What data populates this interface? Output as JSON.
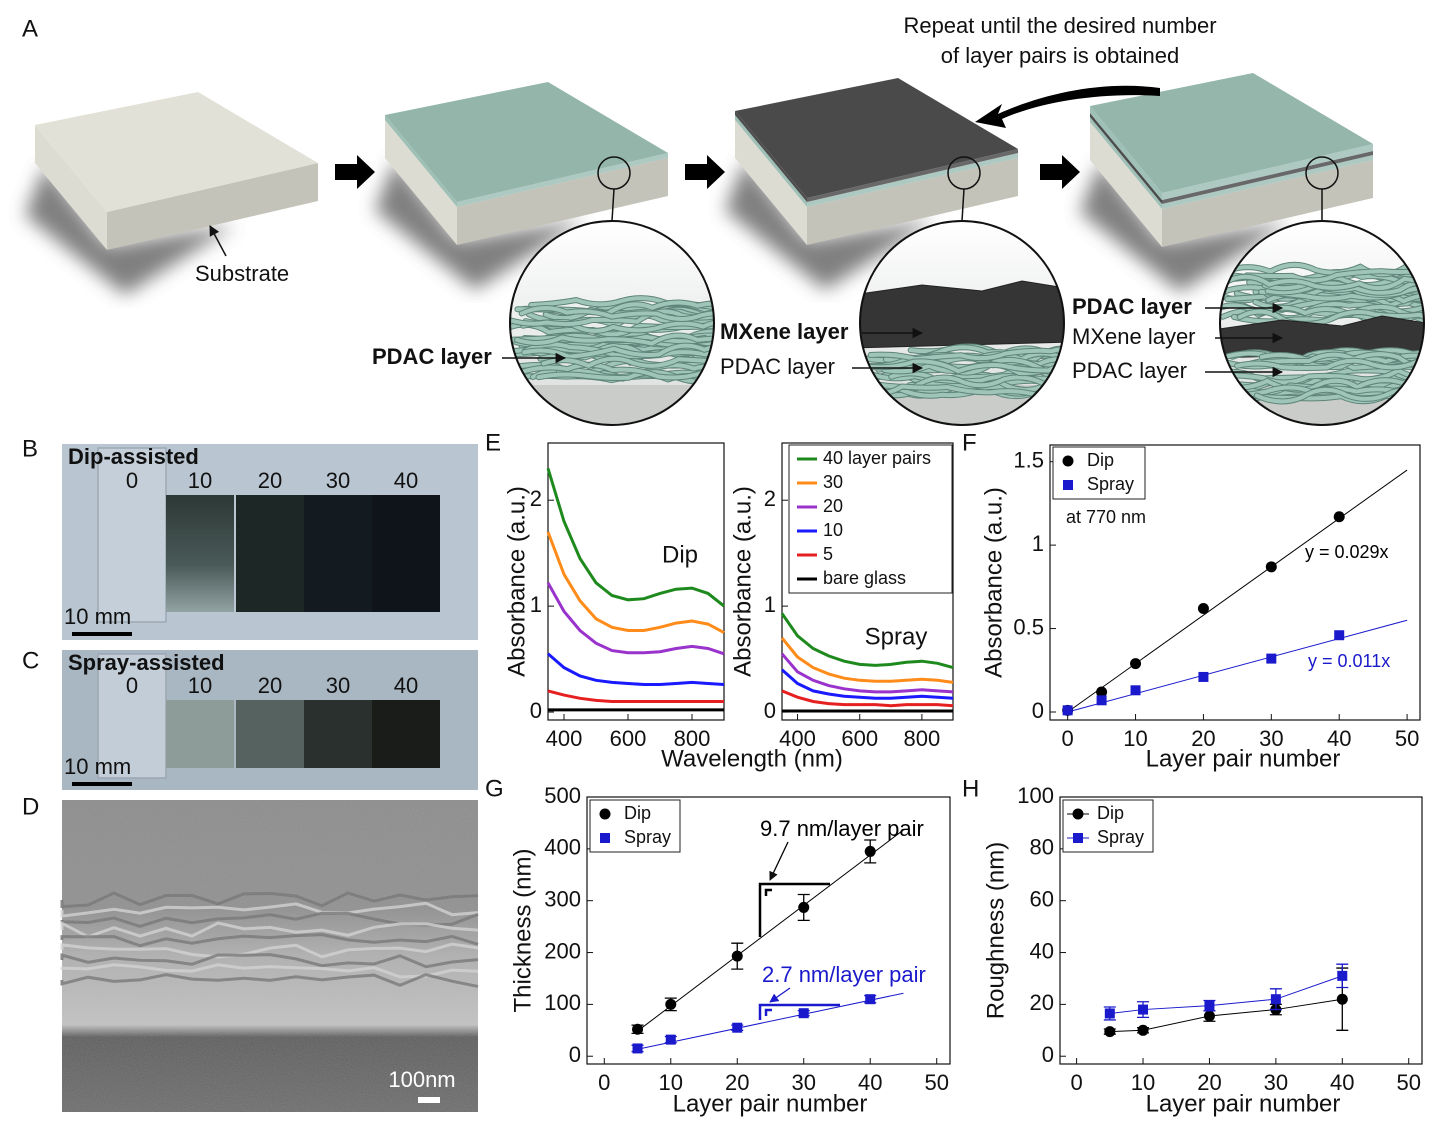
{
  "panel_labels": [
    "A",
    "B",
    "C",
    "D",
    "E",
    "F",
    "G",
    "H"
  ],
  "panel_a": {
    "repeat_note": [
      "Repeat until the desired number",
      "of layer pairs is obtained"
    ],
    "substrate": "Substrate",
    "zoom_1": [
      "PDAC layer"
    ],
    "zoom_2": [
      "MXene layer",
      "PDAC layer"
    ],
    "zoom_3": [
      "PDAC layer",
      "MXene layer",
      "PDAC layer"
    ]
  },
  "panel_b": {
    "title": "Dip-assisted",
    "samples": [
      "0",
      "10",
      "20",
      "30",
      "40"
    ],
    "scale_bar": "10 mm"
  },
  "panel_c": {
    "title": "Spray-assisted",
    "samples": [
      "0",
      "10",
      "20",
      "30",
      "40"
    ],
    "scale_bar": "10 mm"
  },
  "panel_d": {
    "scale_bar": "100nm"
  },
  "chart_data": [
    {
      "type": "line",
      "annotation": "Dip",
      "ylabel": "Absorbance (a.u.)",
      "xlabel": "Wavelength (nm)",
      "xlim": [
        350,
        900
      ],
      "xticks": [
        400,
        600,
        800
      ],
      "ylim": [
        -0.075,
        2.54
      ],
      "yticks": [
        0,
        1,
        2
      ],
      "x": [
        350,
        400,
        450,
        500,
        550,
        600,
        650,
        700,
        750,
        800,
        850,
        900
      ],
      "series": [
        {
          "color": "#1e8a1e",
          "values": [
            2.3,
            1.8,
            1.45,
            1.22,
            1.1,
            1.06,
            1.07,
            1.12,
            1.16,
            1.17,
            1.12,
            1.0
          ]
        },
        {
          "color": "#ff8c1a",
          "values": [
            1.7,
            1.3,
            1.05,
            0.88,
            0.8,
            0.77,
            0.77,
            0.8,
            0.84,
            0.86,
            0.83,
            0.75
          ]
        },
        {
          "color": "#9933cc",
          "values": [
            1.22,
            0.95,
            0.77,
            0.65,
            0.58,
            0.56,
            0.56,
            0.57,
            0.6,
            0.62,
            0.6,
            0.55
          ]
        },
        {
          "color": "#1a1aff",
          "values": [
            0.55,
            0.42,
            0.34,
            0.3,
            0.28,
            0.27,
            0.26,
            0.26,
            0.27,
            0.28,
            0.27,
            0.26
          ]
        },
        {
          "color": "#e62020",
          "values": [
            0.2,
            0.16,
            0.13,
            0.11,
            0.1,
            0.1,
            0.1,
            0.1,
            0.1,
            0.1,
            0.1,
            0.1
          ]
        },
        {
          "color": "#000000",
          "values": [
            0.02,
            0.02,
            0.02,
            0.02,
            0.02,
            0.02,
            0.02,
            0.02,
            0.02,
            0.02,
            0.02,
            0.02
          ]
        }
      ]
    },
    {
      "type": "line",
      "annotation": "Spray",
      "ylabel": "Absorbance (a.u.)",
      "legend": "upper right",
      "xlim": [
        350,
        900
      ],
      "xticks": [
        400,
        600,
        800
      ],
      "ylim": [
        -0.075,
        2.54
      ],
      "yticks": [
        0,
        1,
        2
      ],
      "x": [
        350,
        400,
        450,
        500,
        550,
        600,
        650,
        700,
        750,
        800,
        850,
        900
      ],
      "series": [
        {
          "name": "40 layer pairs",
          "color": "#1e8a1e",
          "values": [
            0.93,
            0.72,
            0.6,
            0.53,
            0.48,
            0.45,
            0.44,
            0.45,
            0.47,
            0.48,
            0.46,
            0.42
          ]
        },
        {
          "name": "30",
          "color": "#ff8c1a",
          "values": [
            0.7,
            0.52,
            0.42,
            0.36,
            0.32,
            0.3,
            0.29,
            0.29,
            0.3,
            0.31,
            0.3,
            0.28
          ]
        },
        {
          "name": "20",
          "color": "#9933cc",
          "values": [
            0.55,
            0.38,
            0.3,
            0.25,
            0.22,
            0.2,
            0.19,
            0.19,
            0.2,
            0.21,
            0.2,
            0.19
          ]
        },
        {
          "name": "10",
          "color": "#1a1aff",
          "values": [
            0.4,
            0.27,
            0.2,
            0.17,
            0.15,
            0.14,
            0.13,
            0.13,
            0.14,
            0.15,
            0.14,
            0.13
          ]
        },
        {
          "name": "5",
          "color": "#e62020",
          "values": [
            0.2,
            0.14,
            0.1,
            0.08,
            0.07,
            0.07,
            0.07,
            0.06,
            0.07,
            0.07,
            0.07,
            0.06
          ]
        },
        {
          "name": "bare glass",
          "color": "#000000",
          "values": [
            0.01,
            0.01,
            0.01,
            0.01,
            0.01,
            0.01,
            0.01,
            0.01,
            0.01,
            0.01,
            0.01,
            0.01
          ]
        }
      ]
    },
    {
      "type": "scatter",
      "annotation": "at 770 nm",
      "ylabel": "Absorbance (a.u.)",
      "xlabel": "Layer pair number",
      "legend": "upper left",
      "xlim": [
        -2.6,
        51.9
      ],
      "xticks": [
        0,
        10,
        20,
        30,
        40,
        50
      ],
      "ylim": [
        -0.048,
        1.6
      ],
      "yticks": [
        0,
        0.5,
        1,
        1.5
      ],
      "x": [
        0,
        5,
        10,
        20,
        30,
        40
      ],
      "series": [
        {
          "name": "Dip",
          "color": "#000000",
          "marker": "circle",
          "values": [
            0.01,
            0.12,
            0.29,
            0.62,
            0.87,
            1.17
          ],
          "fit": {
            "slope": 0.029,
            "label": "y = 0.029x"
          }
        },
        {
          "name": "Spray",
          "color": "#1a1acc",
          "marker": "square",
          "values": [
            0.01,
            0.07,
            0.13,
            0.21,
            0.32,
            0.46
          ],
          "fit": {
            "slope": 0.011,
            "label": "y = 0.011x"
          }
        }
      ]
    },
    {
      "type": "scatter",
      "ylabel": "Thickness (nm)",
      "xlabel": "Layer pair number",
      "legend": "upper left",
      "xlim": [
        -2.6,
        52
      ],
      "xticks": [
        0,
        10,
        20,
        30,
        40,
        50
      ],
      "ylim": [
        -15,
        500
      ],
      "yticks": [
        0,
        100,
        200,
        300,
        400,
        500
      ],
      "x": [
        5,
        10,
        20,
        30,
        40
      ],
      "series": [
        {
          "name": "Dip",
          "color": "#000000",
          "marker": "circle",
          "values": [
            52,
            100,
            193,
            287,
            395
          ],
          "errors": [
            8,
            12,
            25,
            25,
            22
          ],
          "fit": {
            "slope": 9.7,
            "label": "9.7 nm/layer pair"
          }
        },
        {
          "name": "Spray",
          "color": "#1a1acc",
          "marker": "square",
          "values": [
            15,
            32,
            55,
            83,
            110
          ],
          "errors": [
            6,
            6,
            5,
            5,
            7
          ],
          "fit": {
            "slope": 2.7,
            "label": "2.7 nm/layer pair"
          }
        }
      ]
    },
    {
      "type": "scatter",
      "connect": true,
      "ylabel": "Roughness (nm)",
      "xlabel": "Layer pair number",
      "legend": "upper left",
      "xlim": [
        -2.5,
        52
      ],
      "xticks": [
        0,
        10,
        20,
        30,
        40,
        50
      ],
      "ylim": [
        -3,
        100
      ],
      "yticks": [
        0,
        20,
        40,
        60,
        80,
        100
      ],
      "x": [
        5,
        10,
        20,
        30,
        40
      ],
      "series": [
        {
          "name": "Dip",
          "color": "#000000",
          "marker": "circle",
          "values": [
            9.5,
            10,
            15.5,
            18,
            22
          ],
          "errors": [
            1,
            1,
            2,
            2,
            12
          ]
        },
        {
          "name": "Spray",
          "color": "#1a1acc",
          "marker": "square",
          "values": [
            16.5,
            18,
            19.5,
            22,
            31
          ],
          "errors": [
            2.5,
            3,
            2,
            4,
            4.5
          ]
        }
      ]
    }
  ]
}
